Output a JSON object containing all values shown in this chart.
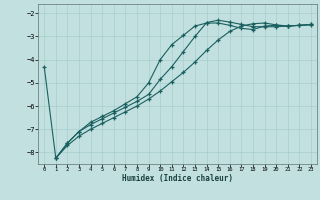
{
  "xlabel": "Humidex (Indice chaleur)",
  "bg_color": "#c2e0e0",
  "grid_color": "#a8cccc",
  "line_color": "#1a6060",
  "xlim": [
    -0.5,
    23.5
  ],
  "ylim": [
    -8.5,
    -1.6
  ],
  "xticks": [
    0,
    1,
    2,
    3,
    4,
    5,
    6,
    7,
    8,
    9,
    10,
    11,
    12,
    13,
    14,
    15,
    16,
    17,
    18,
    19,
    20,
    21,
    22,
    23
  ],
  "yticks": [
    -8,
    -7,
    -6,
    -5,
    -4,
    -3,
    -2
  ],
  "line1_x": [
    0,
    1,
    2,
    3,
    4,
    5,
    6,
    7,
    8,
    9,
    10,
    11,
    12,
    13,
    14,
    15,
    16,
    17,
    18,
    19,
    20,
    21,
    22,
    23
  ],
  "line1_y": [
    -4.3,
    -8.25,
    -7.6,
    -7.1,
    -6.7,
    -6.45,
    -6.2,
    -5.9,
    -5.6,
    -5.0,
    -4.0,
    -3.35,
    -2.95,
    -2.55,
    -2.42,
    -2.42,
    -2.52,
    -2.65,
    -2.7,
    -2.55,
    -2.52,
    -2.55,
    -2.52,
    -2.5
  ],
  "line2_x": [
    1,
    2,
    3,
    4,
    5,
    6,
    7,
    8,
    9,
    10,
    11,
    12,
    13,
    14,
    15,
    16,
    17,
    18,
    19,
    20,
    21,
    22,
    23
  ],
  "line2_y": [
    -8.25,
    -7.6,
    -7.1,
    -6.8,
    -6.55,
    -6.3,
    -6.05,
    -5.8,
    -5.5,
    -4.85,
    -4.3,
    -3.65,
    -3.0,
    -2.4,
    -2.3,
    -2.38,
    -2.48,
    -2.58,
    -2.58,
    -2.58,
    -2.55,
    -2.52,
    -2.48
  ],
  "line3_x": [
    1,
    2,
    3,
    4,
    5,
    6,
    7,
    8,
    9,
    10,
    11,
    12,
    13,
    14,
    15,
    16,
    17,
    18,
    19,
    20,
    21,
    22,
    23
  ],
  "line3_y": [
    -8.25,
    -7.7,
    -7.3,
    -7.0,
    -6.75,
    -6.5,
    -6.25,
    -6.0,
    -5.7,
    -5.35,
    -4.95,
    -4.55,
    -4.1,
    -3.6,
    -3.15,
    -2.78,
    -2.55,
    -2.45,
    -2.42,
    -2.5,
    -2.55,
    -2.52,
    -2.48
  ]
}
